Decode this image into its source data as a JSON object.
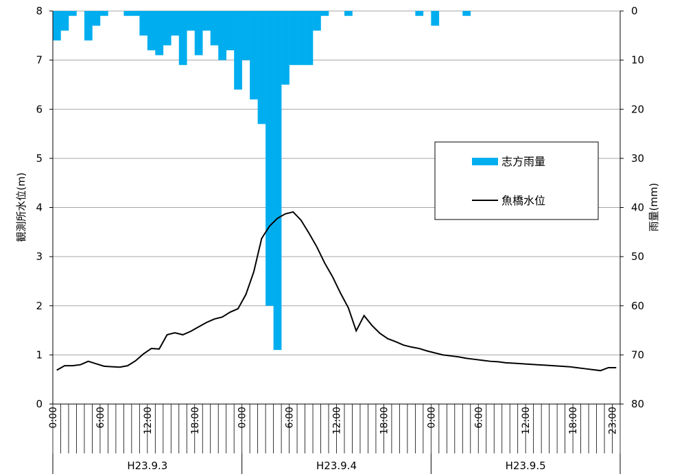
{
  "chart_data": {
    "type": "bar+line",
    "title": "",
    "y_left_label": "観測所水位(m)",
    "y_right_label": "雨量(mm)",
    "y_left_ticks": [
      "0",
      "1",
      "2",
      "3",
      "4",
      "5",
      "6",
      "7",
      "8"
    ],
    "y_right_ticks": [
      "80",
      "70",
      "60",
      "50",
      "40",
      "30",
      "20",
      "10",
      "0"
    ],
    "y_left_lim": [
      0,
      8
    ],
    "y_right_lim": [
      0,
      80
    ],
    "y_right_inverted": true,
    "x_hours_total": 72,
    "x_tick_labels": [
      {
        "hour": 0,
        "label": "0:00"
      },
      {
        "hour": 6,
        "label": "6:00"
      },
      {
        "hour": 12,
        "label": "12:00"
      },
      {
        "hour": 18,
        "label": "18:00"
      },
      {
        "hour": 24,
        "label": "0:00"
      },
      {
        "hour": 30,
        "label": "6:00"
      },
      {
        "hour": 36,
        "label": "12:00"
      },
      {
        "hour": 42,
        "label": "18:00"
      },
      {
        "hour": 48,
        "label": "0:00"
      },
      {
        "hour": 54,
        "label": "6:00"
      },
      {
        "hour": 60,
        "label": "12:00"
      },
      {
        "hour": 66,
        "label": "18:00"
      },
      {
        "hour": 71,
        "label": "23:00"
      }
    ],
    "date_groups": [
      "H23.9.3",
      "H23.9.4",
      "H23.9.5"
    ],
    "grid": "horizontal",
    "legend_position": "right-middle",
    "series": [
      {
        "name": "志方雨量",
        "kind": "bar",
        "axis": "right",
        "color": "#00AEEF",
        "values": [
          6,
          4,
          1,
          0,
          6,
          3,
          1,
          0,
          0,
          1,
          1,
          5,
          8,
          9,
          7,
          5,
          11,
          4,
          9,
          4,
          7,
          10,
          8,
          16,
          10,
          18,
          23,
          60,
          69,
          15,
          11,
          11,
          11,
          4,
          1,
          0,
          0,
          1,
          0,
          0,
          0,
          0,
          0,
          0,
          0,
          0,
          1,
          0,
          3,
          0,
          0,
          0,
          1,
          0,
          0,
          0,
          0,
          0,
          0,
          0,
          0,
          0,
          0,
          0,
          0,
          0,
          0,
          0,
          0,
          0,
          0,
          0
        ]
      },
      {
        "name": "魚橋水位",
        "kind": "line",
        "axis": "left",
        "color": "#000000",
        "values": [
          0.69,
          0.78,
          0.78,
          0.8,
          0.87,
          0.82,
          0.77,
          0.76,
          0.75,
          0.78,
          0.88,
          1.02,
          1.13,
          1.12,
          1.41,
          1.45,
          1.41,
          1.48,
          1.57,
          1.66,
          1.73,
          1.77,
          1.87,
          1.94,
          2.23,
          2.69,
          3.37,
          3.62,
          3.78,
          3.87,
          3.91,
          3.74,
          3.48,
          3.2,
          2.87,
          2.59,
          2.26,
          1.96,
          1.49,
          1.8,
          1.6,
          1.44,
          1.33,
          1.27,
          1.2,
          1.16,
          1.13,
          1.08,
          1.04,
          1.0,
          0.98,
          0.96,
          0.93,
          0.91,
          0.89,
          0.87,
          0.86,
          0.84,
          0.83,
          0.82,
          0.81,
          0.8,
          0.79,
          0.78,
          0.77,
          0.76,
          0.74,
          0.72,
          0.7,
          0.68,
          0.74,
          0.74
        ]
      }
    ]
  }
}
